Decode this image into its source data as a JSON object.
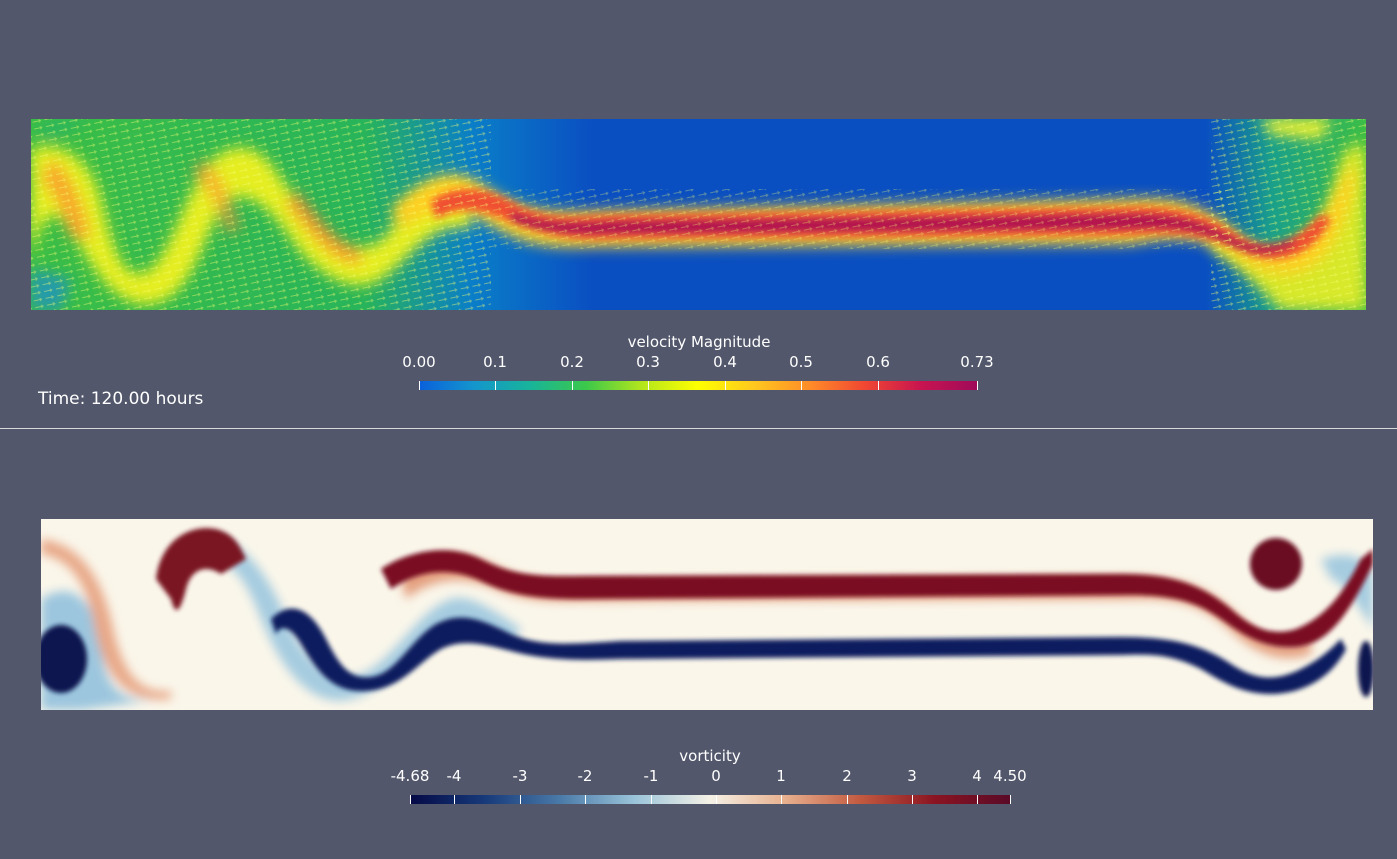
{
  "time_annotation": "Time: 120.00 hours",
  "top_view": {
    "field_name": "velocity Magnitude",
    "colorbar": {
      "title": "velocity Magnitude",
      "range": [
        0.0,
        0.73
      ],
      "tick_labels": [
        "0.00",
        "0.1",
        "0.2",
        "0.3",
        "0.4",
        "0.5",
        "0.6",
        "0.73"
      ],
      "tick_values": [
        0.0,
        0.1,
        0.2,
        0.3,
        0.4,
        0.5,
        0.6,
        0.73
      ],
      "colormap": [
        "#0a60dc",
        "#1496cc",
        "#18b49a",
        "#3cc84a",
        "#b4e61c",
        "#ffff00",
        "#ffc81e",
        "#ff8c28",
        "#f04632",
        "#c81450",
        "#a00a5a"
      ]
    }
  },
  "bottom_view": {
    "field_name": "vorticity",
    "colorbar": {
      "title": "vorticity",
      "range": [
        -4.68,
        4.5
      ],
      "tick_labels": [
        "-4.68",
        "-4",
        "-3",
        "-2",
        "-1",
        "0",
        "1",
        "2",
        "3",
        "4",
        "4.50"
      ],
      "tick_values": [
        -4.68,
        -4,
        -3,
        -2,
        -1,
        0,
        1,
        2,
        3,
        4,
        4.5
      ],
      "colormap": [
        "#050a46",
        "#173a7a",
        "#4a7aa8",
        "#9ac4da",
        "#f5f1e6",
        "#e8b08e",
        "#c25a40",
        "#8a1422",
        "#5a0a28"
      ]
    }
  },
  "colors": {
    "background": "#52576b",
    "divider": "#d8d8de",
    "text": "#ffffff",
    "velocity_low": "#0a4cc0",
    "velocity_high": "#b8104a",
    "vorticity_negative": "#0a1a5a",
    "vorticity_neutral": "#faf6ea",
    "vorticity_positive": "#7a1020"
  }
}
